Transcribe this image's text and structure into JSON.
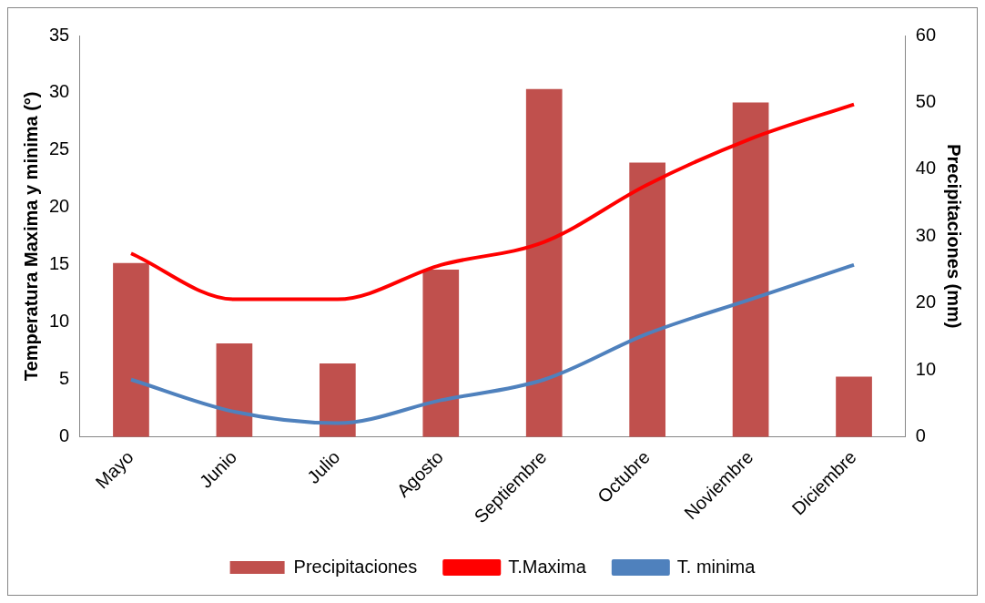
{
  "chart_data": {
    "type": "bar",
    "ylabel": "Temperatura Maxima y minima (°)",
    "y2label": "Precipitaciones (mm)",
    "categories": [
      "Mayo",
      "Junio",
      "Julio",
      "Agosto",
      "Septiembre",
      "Octubre",
      "Noviembre",
      "Diciembre"
    ],
    "series": [
      {
        "name": "Precipitaciones",
        "axis": "y2",
        "color": "#c0504d",
        "values": [
          26,
          14,
          11,
          25,
          52,
          41,
          50,
          9
        ]
      },
      {
        "name": "T.Maxima",
        "type": "line",
        "color": "#ff0000",
        "values": [
          16,
          12,
          12,
          15,
          17,
          22,
          26,
          29
        ]
      },
      {
        "name": "T. minima",
        "type": "line",
        "color": "#4f81bd",
        "values": [
          5,
          2.2,
          1.2,
          3.2,
          5,
          9,
          12,
          15
        ]
      }
    ],
    "ylim": [
      0,
      35
    ],
    "yticks": [
      0,
      5,
      10,
      15,
      20,
      25,
      30,
      35
    ],
    "y2lim": [
      0,
      60
    ],
    "y2ticks": [
      0,
      10,
      20,
      30,
      40,
      50,
      60
    ],
    "grid": false,
    "legend": "bottom",
    "marker": "none"
  }
}
